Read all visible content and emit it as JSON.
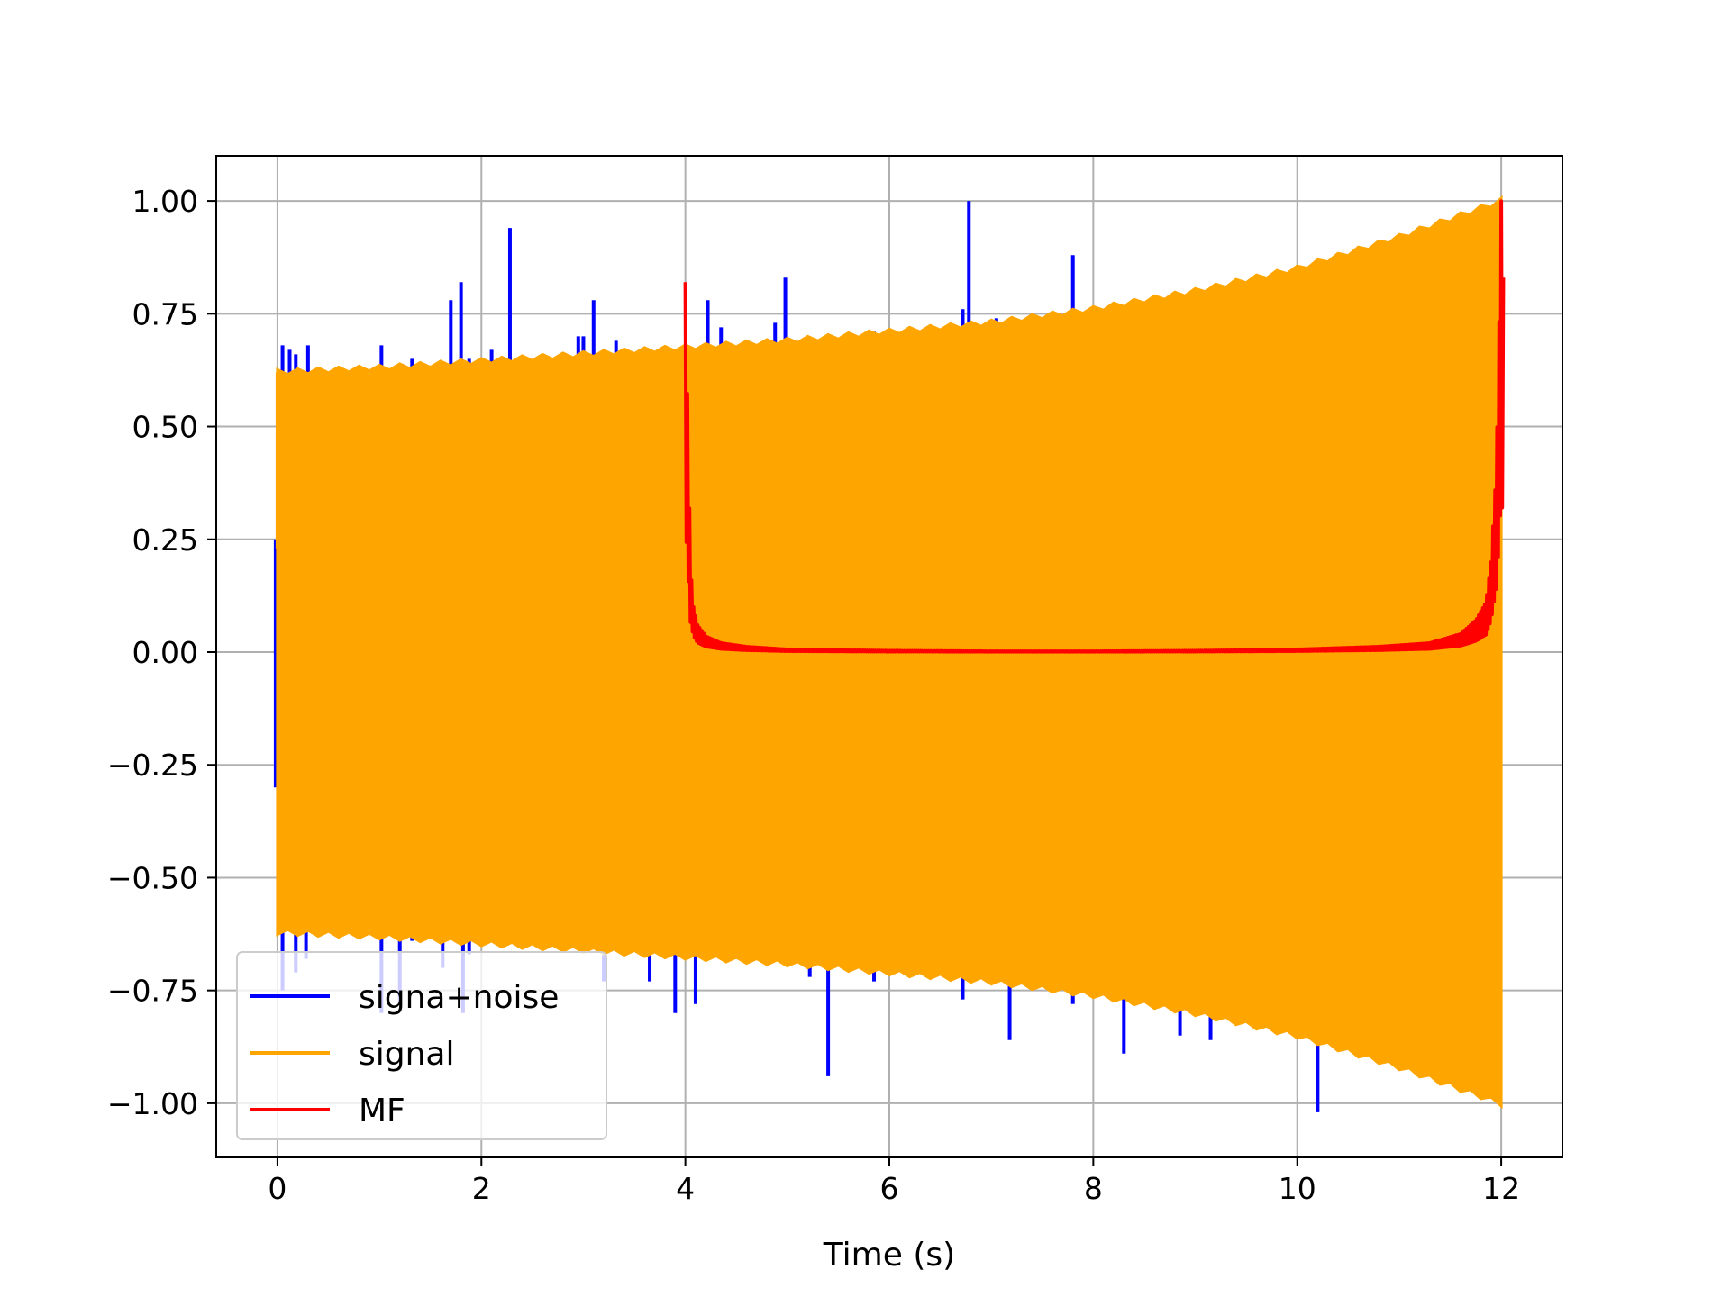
{
  "chart_data": {
    "type": "line",
    "title": "",
    "xlabel": "Time (s)",
    "ylabel": "",
    "xlim": [
      -0.6,
      12.6
    ],
    "ylim": [
      -1.12,
      1.1
    ],
    "xticks": [
      0,
      2,
      4,
      6,
      8,
      10,
      12
    ],
    "xtick_labels": [
      "0",
      "2",
      "4",
      "6",
      "8",
      "10",
      "12"
    ],
    "yticks": [
      1.0,
      0.75,
      0.5,
      0.25,
      0.0,
      -0.25,
      -0.5,
      -0.75,
      -1.0
    ],
    "ytick_labels": [
      "1.00",
      "0.75",
      "0.50",
      "0.25",
      "0.00",
      "−0.25",
      "−0.50",
      "−0.75",
      "−1.00"
    ],
    "grid": true,
    "legend_placement": "lower-left",
    "series": [
      {
        "name": "signa+noise",
        "color": "#0000ff",
        "kind": "noisy-chirp",
        "x_range": [
          0,
          12
        ],
        "spikes_up": [
          [
            0.05,
            0.68
          ],
          [
            0.12,
            0.67
          ],
          [
            0.18,
            0.66
          ],
          [
            0.3,
            0.68
          ],
          [
            1.02,
            0.68
          ],
          [
            1.32,
            0.65
          ],
          [
            1.7,
            0.78
          ],
          [
            1.8,
            0.82
          ],
          [
            1.88,
            0.65
          ],
          [
            2.1,
            0.67
          ],
          [
            2.28,
            0.94
          ],
          [
            2.95,
            0.7
          ],
          [
            3.0,
            0.7
          ],
          [
            3.1,
            0.78
          ],
          [
            3.32,
            0.69
          ],
          [
            4.22,
            0.78
          ],
          [
            4.35,
            0.72
          ],
          [
            4.88,
            0.73
          ],
          [
            4.98,
            0.83
          ],
          [
            5.85,
            0.71
          ],
          [
            6.72,
            0.76
          ],
          [
            6.78,
            1.0
          ],
          [
            7.05,
            0.74
          ],
          [
            7.8,
            0.88
          ],
          [
            9.95,
            0.84
          ]
        ],
        "spikes_down": [
          [
            0.05,
            -0.75
          ],
          [
            0.18,
            -0.71
          ],
          [
            0.28,
            -0.68
          ],
          [
            1.02,
            -0.8
          ],
          [
            1.2,
            -0.78
          ],
          [
            1.32,
            -0.64
          ],
          [
            1.62,
            -0.7
          ],
          [
            1.82,
            -0.8
          ],
          [
            1.88,
            -0.67
          ],
          [
            3.2,
            -0.73
          ],
          [
            3.65,
            -0.73
          ],
          [
            3.9,
            -0.8
          ],
          [
            4.1,
            -0.78
          ],
          [
            5.4,
            -0.94
          ],
          [
            5.22,
            -0.72
          ],
          [
            5.85,
            -0.73
          ],
          [
            6.2,
            -0.72
          ],
          [
            6.72,
            -0.77
          ],
          [
            7.18,
            -0.86
          ],
          [
            7.8,
            -0.78
          ],
          [
            8.3,
            -0.89
          ],
          [
            8.85,
            -0.85
          ],
          [
            9.15,
            -0.86
          ],
          [
            10.2,
            -1.02
          ]
        ]
      },
      {
        "name": "signal",
        "color": "#ffa500",
        "kind": "chirp-envelope",
        "x_range": [
          0,
          12
        ],
        "envelope_points": [
          [
            0,
            0.62
          ],
          [
            1,
            0.63
          ],
          [
            2,
            0.645
          ],
          [
            3,
            0.66
          ],
          [
            4,
            0.675
          ],
          [
            5,
            0.69
          ],
          [
            6,
            0.71
          ],
          [
            7,
            0.73
          ],
          [
            8,
            0.76
          ],
          [
            9,
            0.8
          ],
          [
            10,
            0.85
          ],
          [
            11,
            0.92
          ],
          [
            12,
            1.0
          ]
        ]
      },
      {
        "name": "MF",
        "color": "#ff0000",
        "kind": "matched-filter",
        "x_range": [
          4,
          12
        ],
        "points": [
          [
            4.0,
            0.82
          ],
          [
            4.03,
            0.45
          ],
          [
            4.05,
            0.19
          ],
          [
            4.08,
            0.1
          ],
          [
            4.12,
            0.06
          ],
          [
            4.2,
            0.035
          ],
          [
            4.35,
            0.02
          ],
          [
            4.6,
            0.012
          ],
          [
            5.0,
            0.006
          ],
          [
            6.0,
            0.003
          ],
          [
            7.0,
            0.002
          ],
          [
            8.0,
            0.002
          ],
          [
            9.0,
            0.003
          ],
          [
            10.0,
            0.006
          ],
          [
            10.8,
            0.012
          ],
          [
            11.3,
            0.02
          ],
          [
            11.6,
            0.04
          ],
          [
            11.75,
            0.07
          ],
          [
            11.85,
            0.11
          ],
          [
            11.9,
            0.2
          ],
          [
            11.95,
            0.4
          ],
          [
            11.97,
            0.6
          ],
          [
            12.0,
            1.0
          ],
          [
            12.02,
            0.83
          ]
        ]
      }
    ]
  }
}
